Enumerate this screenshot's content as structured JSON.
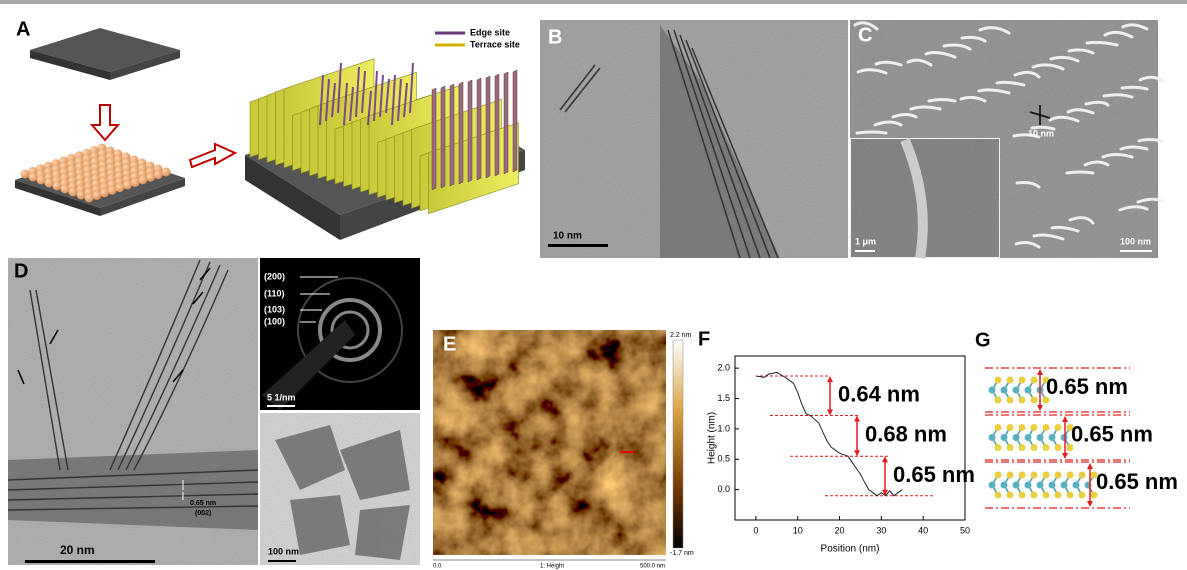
{
  "panels": {
    "a": {
      "label": "A",
      "legend": [
        "Edge site",
        "Terrace site"
      ]
    },
    "b": {
      "label": "B",
      "scale": "10 nm"
    },
    "c": {
      "label": "C",
      "feature": "10 nm",
      "inset_scale": "1 μm",
      "scale": "100 nm"
    },
    "d": {
      "label": "D",
      "rings": [
        "(200)",
        "(110)",
        "(103)",
        "(100)"
      ],
      "saed_scale": "5 1/nm",
      "spacing": "0.65 nm",
      "plane": "(002)",
      "scale": "20 nm",
      "inset_scale": "100 nm"
    },
    "e": {
      "label": "E",
      "colorbar_max": "2.2 nm",
      "colorbar_min": "-1.7 nm",
      "axis_start": "0.0",
      "axis_title": "1: Height",
      "axis_end": "500.0 nm"
    },
    "g": {
      "label": "G",
      "spacings": [
        "0.65 nm",
        "0.65 nm",
        "0.65 nm"
      ]
    }
  },
  "chart_data": {
    "type": "line",
    "panel_label": "F",
    "x_label": "Position (nm)",
    "y_label": "Height (nm)",
    "x": [
      0,
      2,
      3,
      5,
      7,
      9,
      10,
      11,
      12,
      13,
      15,
      16,
      17,
      18,
      20,
      22,
      23,
      24,
      25,
      26,
      27,
      28,
      29,
      30,
      31,
      32,
      33,
      34,
      35
    ],
    "values": [
      1.87,
      1.85,
      1.9,
      1.93,
      1.85,
      1.75,
      1.6,
      1.4,
      1.25,
      1.22,
      1.1,
      0.95,
      0.8,
      0.7,
      0.6,
      0.55,
      0.45,
      0.35,
      0.25,
      0.12,
      0.0,
      -0.05,
      -0.1,
      -0.05,
      -0.1,
      -0.02,
      -0.1,
      -0.05,
      0.0
    ],
    "color": "#222222",
    "xlim": [
      -5,
      50
    ],
    "ylim": [
      -0.5,
      2.2
    ],
    "xticks": [
      0,
      10,
      20,
      30,
      40,
      50
    ],
    "yticks": [
      {
        "value": 0,
        "label": "0.0"
      },
      0.5,
      {
        "value": 1,
        "label": "1.0"
      },
      1.5,
      {
        "value": 2,
        "label": "2.0"
      }
    ],
    "reference_lines": [
      1.87,
      1.22,
      0.55,
      -0.1
    ],
    "reference_color": "#e02020",
    "annotations": [
      "0.64 nm",
      "0.68 nm",
      "0.65 nm"
    ]
  }
}
